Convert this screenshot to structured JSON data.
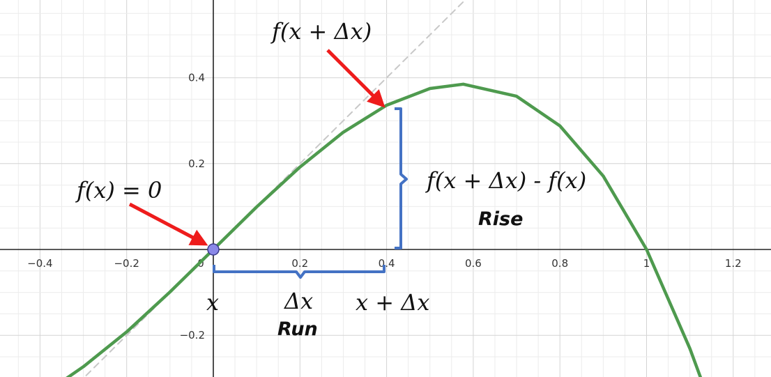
{
  "chart_data": {
    "type": "line",
    "xlim": [
      -0.5,
      1.28
    ],
    "ylim": [
      -0.3,
      0.58
    ],
    "grid": true,
    "x_ticks": [
      -0.4,
      -0.2,
      0,
      0.2,
      0.4,
      0.6,
      0.8,
      1,
      1.2
    ],
    "x_tick_labels": [
      "−0.4",
      "−0.2",
      "0",
      "0.2",
      "0.4",
      "0.6",
      "0.8",
      "1",
      "1.2"
    ],
    "y_ticks": [
      -0.2,
      0.2,
      0.4
    ],
    "y_tick_labels": [
      "−0.2",
      "0.2",
      "0.4"
    ],
    "series": [
      {
        "role": "curve",
        "color": "#4e9a4e",
        "x": [
          -0.34,
          -0.3,
          -0.2,
          -0.1,
          0,
          0.1,
          0.2,
          0.3,
          0.4,
          0.5,
          0.577,
          0.7,
          0.8,
          0.9,
          1,
          1.1,
          1.13
        ],
        "y": [
          -0.301,
          -0.273,
          -0.192,
          -0.099,
          0,
          0.099,
          0.192,
          0.273,
          0.336,
          0.375,
          0.385,
          0.357,
          0.288,
          0.171,
          0,
          -0.231,
          -0.313
        ]
      },
      {
        "role": "tangent",
        "style": "dashed",
        "color": "#c8c8c8",
        "x": [
          -0.33,
          0.58
        ],
        "y": [
          -0.33,
          0.58
        ]
      }
    ],
    "points": [
      {
        "x": 0,
        "y": 0,
        "color": "#8a88e8"
      }
    ],
    "annotations": {
      "fx_label": "f(x) = 0",
      "fxdx_label": "f(x + Δx)",
      "rise_formula": "f(x + Δx) - f(x)",
      "rise_label": "Rise",
      "x_label": "x",
      "dx_label": "Δx",
      "xdx_label": "x + Δx",
      "run_label": "Run"
    },
    "colors": {
      "arrow": "#ee1c1c",
      "bracket": "#4472c4",
      "grid_minor": "#ececec",
      "grid_major": "#d4d4d4",
      "axis": "#222222"
    }
  }
}
